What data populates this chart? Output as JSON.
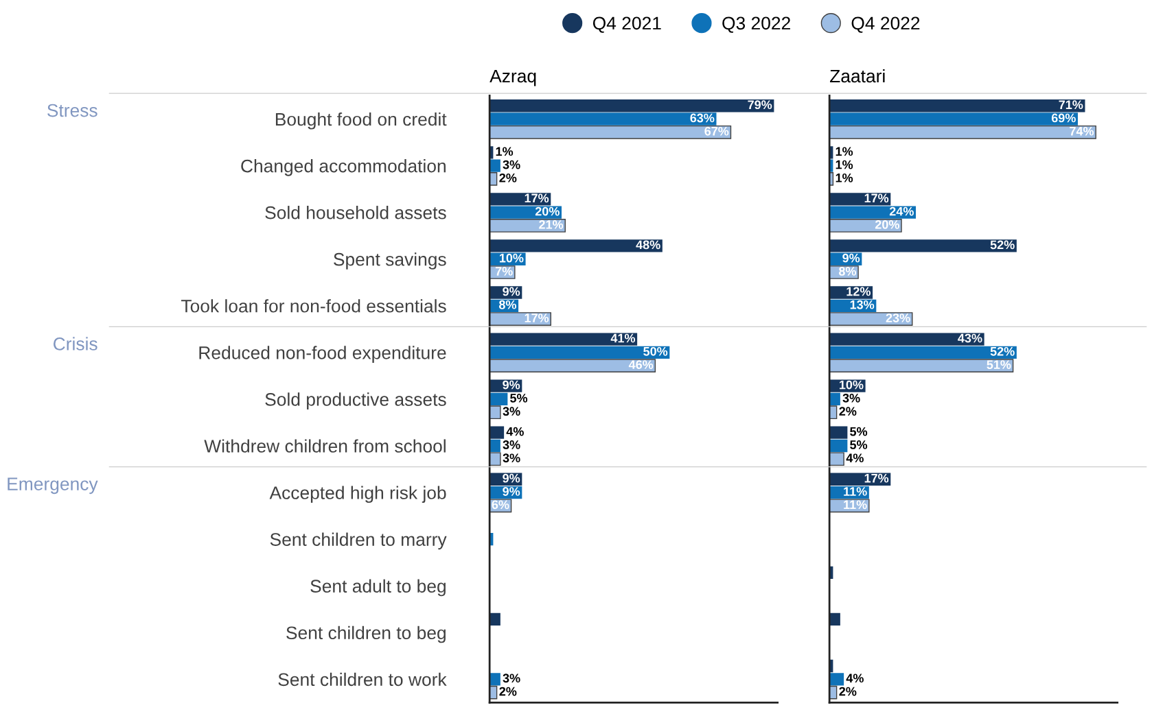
{
  "chart_data": [
    {
      "type": "bar",
      "orientation": "horizontal",
      "title": "Azraq",
      "legend": "top",
      "tick_labels": "y",
      "grid": false,
      "categories": [
        "Bought food on credit",
        "Changed accommodation",
        "Sold household assets",
        "Spent savings",
        "Took loan for non-food essentials",
        "Reduced non-food expenditure",
        "Sold productive assets",
        "Withdrew children from school",
        "Accepted high risk job",
        "Sent children to marry",
        "Sent adult to beg",
        "Sent children to beg",
        "Sent children to work"
      ],
      "xlim": [
        0,
        80
      ],
      "annotations": [
        "Stress",
        "Crisis",
        "Emergency"
      ],
      "series": [
        {
          "name": "Q4 2021",
          "color": "#17375e",
          "values": [
            79,
            1,
            17,
            48,
            9,
            41,
            9,
            4,
            9,
            null,
            null,
            3,
            null
          ],
          "value_labels": [
            "79%",
            "1%",
            "17%",
            "48%",
            "9%",
            "41%",
            "9%",
            "4%",
            "9%",
            null,
            null,
            null,
            null
          ]
        },
        {
          "name": "Q3 2022",
          "color": "#0e72b8",
          "values": [
            63,
            3,
            20,
            10,
            8,
            50,
            5,
            3,
            9,
            1,
            null,
            null,
            3
          ],
          "value_labels": [
            "63%",
            "3%",
            "20%",
            "10%",
            "8%",
            "50%",
            "5%",
            "3%",
            "9%",
            null,
            null,
            null,
            "3%"
          ]
        },
        {
          "name": "Q4 2022",
          "color": "#9dbde4",
          "values": [
            67,
            2,
            21,
            7,
            17,
            46,
            3,
            3,
            6,
            null,
            null,
            null,
            2
          ],
          "value_labels": [
            "67%",
            "2%",
            "21%",
            "7%",
            "17%",
            "46%",
            "3%",
            "3%",
            "6%",
            null,
            null,
            null,
            "2%"
          ]
        }
      ]
    },
    {
      "type": "bar",
      "orientation": "horizontal",
      "title": "Zaatari",
      "tick_labels": false,
      "grid": false,
      "categories": [
        null,
        null,
        null,
        null,
        null,
        null,
        null,
        null,
        null,
        null,
        null,
        null,
        null
      ],
      "xlim": [
        0,
        80
      ],
      "series": [
        {
          "color": "#17375e",
          "values": [
            71,
            1,
            17,
            52,
            12,
            43,
            10,
            5,
            17,
            null,
            1,
            3,
            1
          ],
          "value_labels": [
            "71%",
            "1%",
            "17%",
            "52%",
            "12%",
            "43%",
            "10%",
            "5%",
            "17%",
            null,
            null,
            null,
            null
          ]
        },
        {
          "color": "#0e72b8",
          "values": [
            69,
            1,
            24,
            9,
            13,
            52,
            3,
            5,
            11,
            null,
            null,
            null,
            4
          ],
          "value_labels": [
            "69%",
            "1%",
            "24%",
            "9%",
            "13%",
            "52%",
            "3%",
            "5%",
            "11%",
            null,
            null,
            null,
            "4%"
          ]
        },
        {
          "color": "#9dbde4",
          "values": [
            74,
            1,
            20,
            8,
            23,
            51,
            2,
            4,
            11,
            null,
            null,
            null,
            2
          ],
          "value_labels": [
            "74%",
            "1%",
            "20%",
            "8%",
            "23%",
            "51%",
            "2%",
            "4%",
            "11%",
            null,
            null,
            null,
            "2%"
          ]
        }
      ]
    }
  ]
}
